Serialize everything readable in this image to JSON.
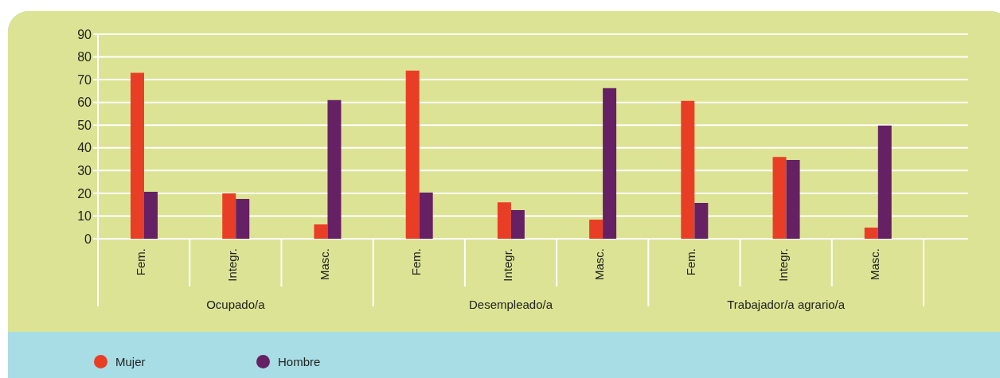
{
  "chart_data": {
    "type": "bar",
    "categories": [
      "Fem.",
      "Integr.",
      "Masc.",
      "Fem.",
      "Integr.",
      "Masc.",
      "Fem.",
      "Integr.",
      "Masc."
    ],
    "series": [
      {
        "name": "Mujer",
        "color": "#e93e26",
        "values": [
          73,
          20,
          6.3,
          74,
          16,
          8.4,
          60.7,
          36,
          4.9
        ]
      },
      {
        "name": "Hombre",
        "color": "#662064",
        "values": [
          20.7,
          17.5,
          61,
          20.3,
          12.6,
          66.3,
          15.8,
          34.7,
          49.8
        ]
      }
    ],
    "annotations": [
      "Ocupado/a",
      "Desempleado/a",
      "Trabajador/a agrario/a"
    ],
    "ylim": [
      0,
      90
    ],
    "yticks": [
      0,
      10,
      20,
      30,
      40,
      50,
      60,
      70,
      80,
      90
    ],
    "grid": "y",
    "legend": "bottom"
  }
}
